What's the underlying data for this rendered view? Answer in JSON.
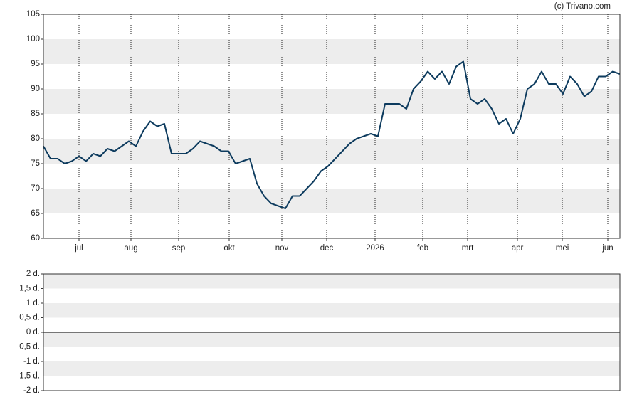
{
  "chart_data": [
    {
      "type": "line",
      "credit": "(c) Trivano.com",
      "series": [
        {
          "color": "#0d3b5e",
          "values": [
            78.5,
            76,
            76,
            75,
            75.5,
            76.5,
            75.5,
            77,
            76.5,
            78,
            77.5,
            78.5,
            79.5,
            78.5,
            81.5,
            83.5,
            82.5,
            83,
            77,
            77,
            77,
            78,
            79.5,
            79,
            78.5,
            77.5,
            77.5,
            75,
            75.5,
            76,
            71,
            68.5,
            67,
            66.5,
            66,
            68.5,
            68.5,
            70,
            71.5,
            73.5,
            74.5,
            76,
            77.5,
            79,
            80,
            80.5,
            81,
            80.5,
            87,
            87,
            87,
            86,
            90,
            91.5,
            93.5,
            92,
            93.5,
            91,
            94.5,
            95.5,
            88,
            87,
            88,
            86,
            83,
            84,
            81,
            84,
            90,
            91,
            93.5,
            91,
            91,
            89,
            92.5,
            91,
            88.5,
            89.5,
            92.5,
            92.5,
            93.5,
            93
          ]
        }
      ],
      "xlim": [
        0,
        81
      ],
      "xticks": [
        {
          "value": 5,
          "label": "jul"
        },
        {
          "value": 12.3,
          "label": "aug"
        },
        {
          "value": 19,
          "label": "sep"
        },
        {
          "value": 26.1,
          "label": "okt"
        },
        {
          "value": 33.5,
          "label": "nov"
        },
        {
          "value": 39.8,
          "label": "dec"
        },
        {
          "value": 46.6,
          "label": "2026"
        },
        {
          "value": 53.3,
          "label": "feb"
        },
        {
          "value": 59.6,
          "label": "mrt"
        },
        {
          "value": 66.6,
          "label": "apr"
        },
        {
          "value": 72.9,
          "label": "mei"
        },
        {
          "value": 79.3,
          "label": "jun"
        }
      ],
      "ylim": [
        60,
        105
      ],
      "yticks": [
        60,
        65,
        70,
        75,
        80,
        85,
        90,
        95,
        100,
        105
      ],
      "grid": true
    },
    {
      "type": "line",
      "ylim": [
        -2,
        2
      ],
      "yticks": [
        {
          "value": 2,
          "label": "2 d."
        },
        {
          "value": 1.5,
          "label": "1,5 d."
        },
        {
          "value": 1,
          "label": "1 d."
        },
        {
          "value": 0.5,
          "label": "0,5 d."
        },
        {
          "value": 0,
          "label": "0 d."
        },
        {
          "value": -0.5,
          "label": "-0,5 d."
        },
        {
          "value": -1,
          "label": "-1 d."
        },
        {
          "value": -1.5,
          "label": "-1,5 d."
        },
        {
          "value": -2,
          "label": "-2 d."
        }
      ]
    }
  ]
}
